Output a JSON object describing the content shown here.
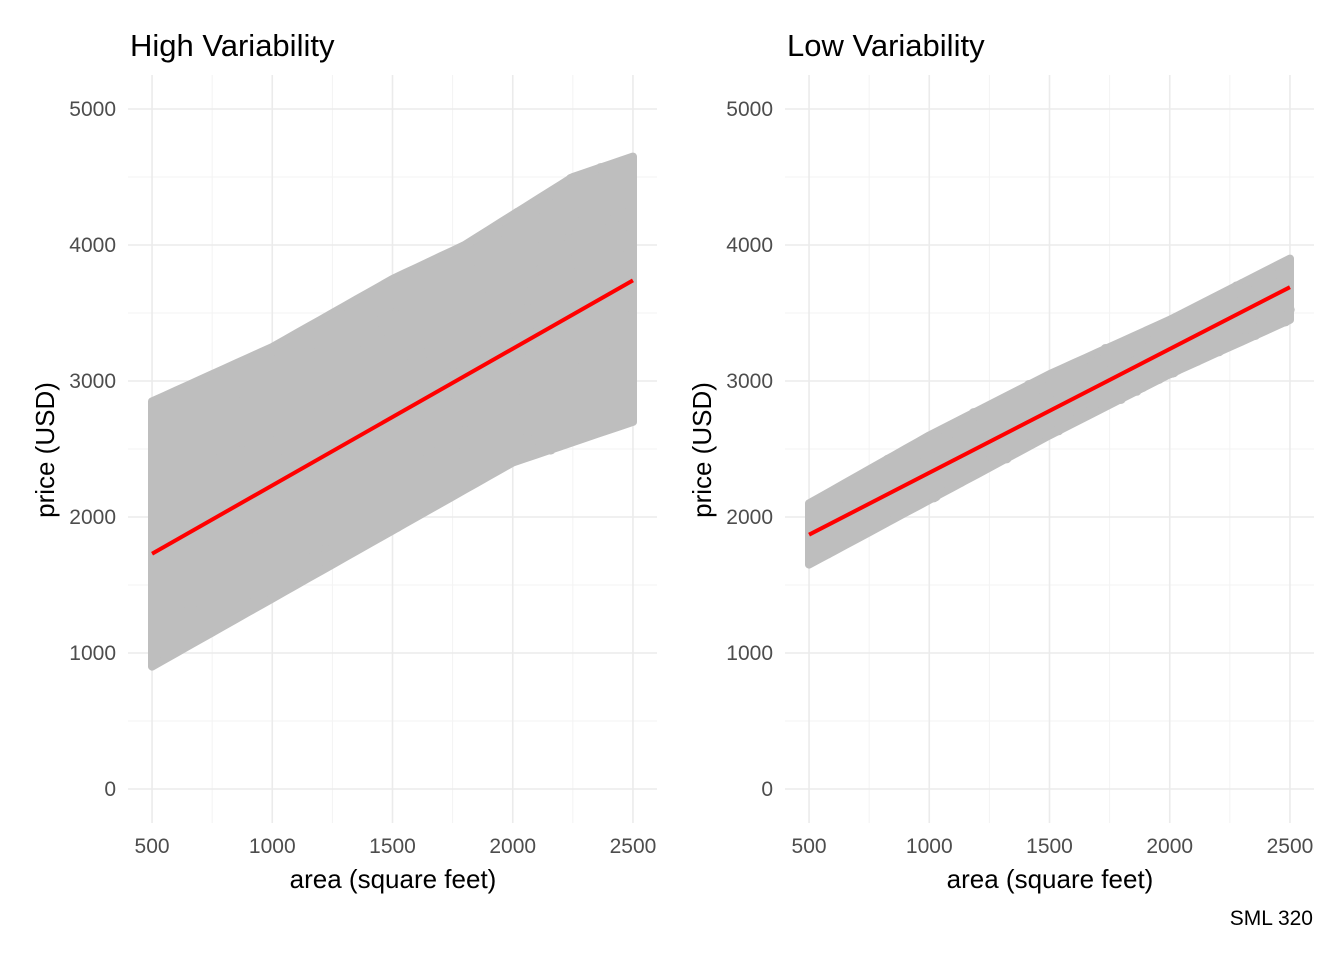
{
  "caption": "SML 320",
  "colors": {
    "points": "#bebebe",
    "fit_line": "#ff0000",
    "grid_major": "#ebebeb",
    "grid_minor": "#f3f3f3",
    "tick_text": "#4d4d4d"
  },
  "chart_data": [
    {
      "type": "scatter",
      "title": "High Variability",
      "xlabel": "area (square feet)",
      "ylabel": "price (USD)",
      "xlim": [
        500,
        2500
      ],
      "ylim": [
        0,
        5000
      ],
      "x_ticks": [
        500,
        1000,
        1500,
        2000,
        2500
      ],
      "y_ticks": [
        0,
        1000,
        2000,
        3000,
        4000,
        5000
      ],
      "x_tick_labels": [
        "500",
        "1000",
        "1500",
        "2000",
        "2500"
      ],
      "y_tick_labels": [
        "0",
        "1000",
        "2000",
        "3000",
        "4000",
        "5000"
      ],
      "grid": true,
      "legend": "none",
      "scatter_cloud": {
        "x_range": [
          500,
          2500
        ],
        "lower_edge": [
          [
            500,
            900
          ],
          [
            2000,
            2400
          ],
          [
            2500,
            2700
          ]
        ],
        "upper_edge": [
          [
            500,
            2850
          ],
          [
            1000,
            3250
          ],
          [
            1500,
            3750
          ],
          [
            1800,
            4000
          ],
          [
            2250,
            4500
          ],
          [
            2500,
            4650
          ]
        ]
      },
      "fit_line": {
        "x": [
          500,
          2500
        ],
        "y": [
          1730,
          3740
        ]
      }
    },
    {
      "type": "scatter",
      "title": "Low Variability",
      "xlabel": "area (square feet)",
      "ylabel": "price (USD)",
      "xlim": [
        500,
        2500
      ],
      "ylim": [
        0,
        5000
      ],
      "x_ticks": [
        500,
        1000,
        1500,
        2000,
        2500
      ],
      "y_ticks": [
        0,
        1000,
        2000,
        3000,
        4000,
        5000
      ],
      "x_tick_labels": [
        "500",
        "1000",
        "1500",
        "2000",
        "2500"
      ],
      "y_tick_labels": [
        "0",
        "1000",
        "2000",
        "3000",
        "4000",
        "5000"
      ],
      "grid": true,
      "legend": "none",
      "scatter_cloud": {
        "x_range": [
          500,
          2500
        ],
        "lower_edge": [
          [
            500,
            1650
          ],
          [
            1500,
            2600
          ],
          [
            2000,
            3050
          ],
          [
            2500,
            3450
          ]
        ],
        "upper_edge": [
          [
            500,
            2100
          ],
          [
            1000,
            2600
          ],
          [
            1500,
            3050
          ],
          [
            2000,
            3450
          ],
          [
            2500,
            3900
          ]
        ]
      },
      "fit_line": {
        "x": [
          500,
          2500
        ],
        "y": [
          1870,
          3690
        ]
      }
    }
  ]
}
